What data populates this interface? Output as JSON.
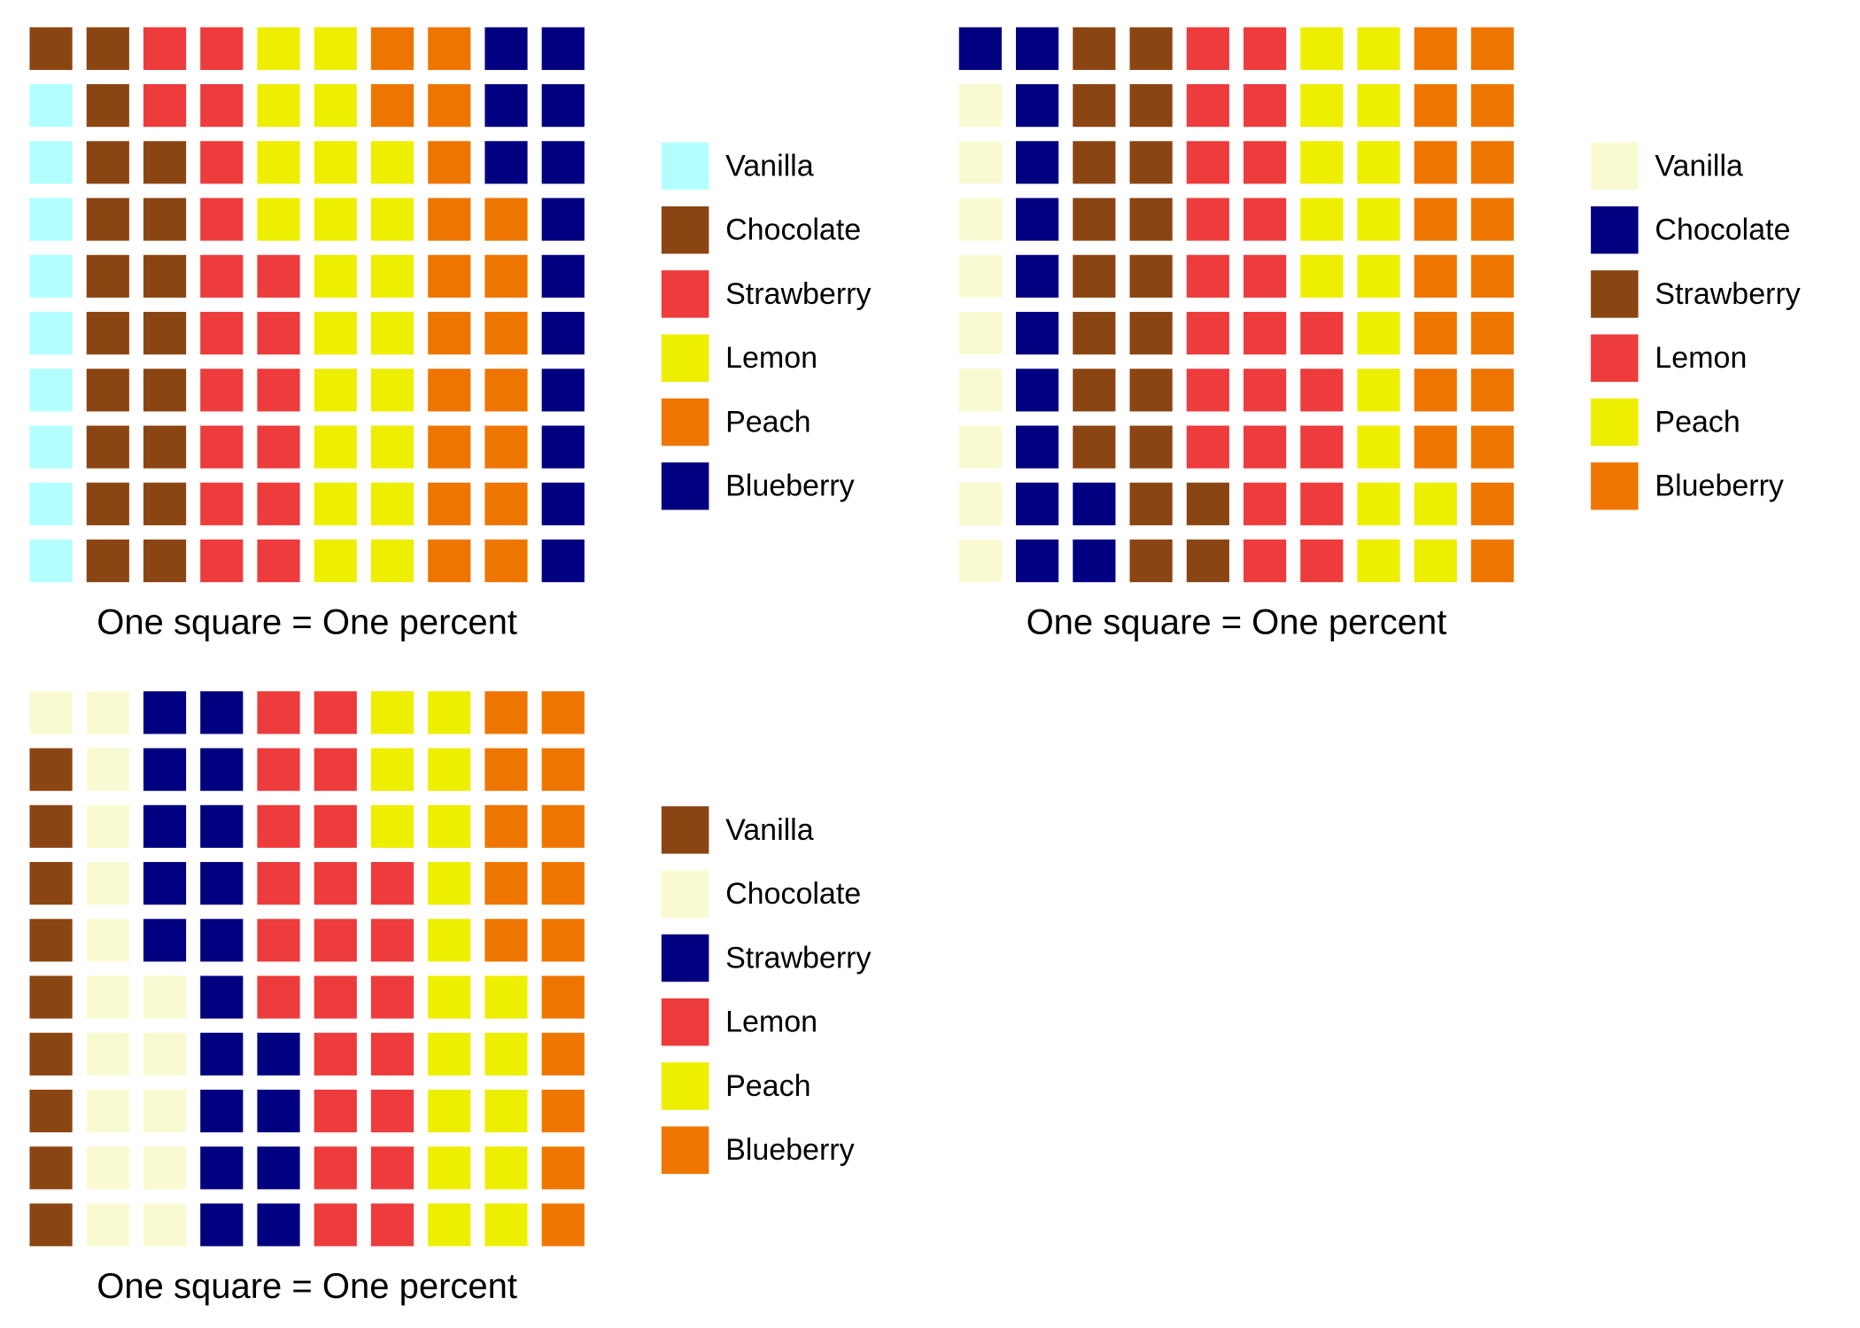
{
  "chart_data": [
    {
      "type": "waffle",
      "unit_label": "One square = One percent",
      "legend_placement": "right",
      "categories": [
        "Vanilla",
        "Chocolate",
        "Strawberry",
        "Lemon",
        "Peach",
        "Blueberry"
      ],
      "values": [
        9,
        19,
        18,
        22,
        19,
        13
      ],
      "colors": [
        "#B3FFFF",
        "#8B4513",
        "#EE3B3B",
        "#EEEE00",
        "#EE7600",
        "#000080"
      ]
    },
    {
      "type": "waffle",
      "unit_label": "One square = One percent",
      "legend_placement": "right",
      "categories": [
        "Vanilla",
        "Chocolate",
        "Strawberry",
        "Lemon",
        "Peach",
        "Blueberry"
      ],
      "values": [
        9,
        13,
        20,
        23,
        17,
        18
      ],
      "colors": [
        "#FAFAD2",
        "#000080",
        "#8B4513",
        "#EE3B3B",
        "#EEEE00",
        "#EE7600"
      ]
    },
    {
      "type": "waffle",
      "unit_label": "One square = One percent",
      "legend_placement": "right",
      "categories": [
        "Vanilla",
        "Chocolate",
        "Strawberry",
        "Lemon",
        "Peach",
        "Blueberry"
      ],
      "values": [
        9,
        16,
        19,
        23,
        18,
        15
      ],
      "colors": [
        "#8B4513",
        "#FAFAD2",
        "#000080",
        "#EE3B3B",
        "#EEEE00",
        "#EE7600"
      ]
    }
  ]
}
